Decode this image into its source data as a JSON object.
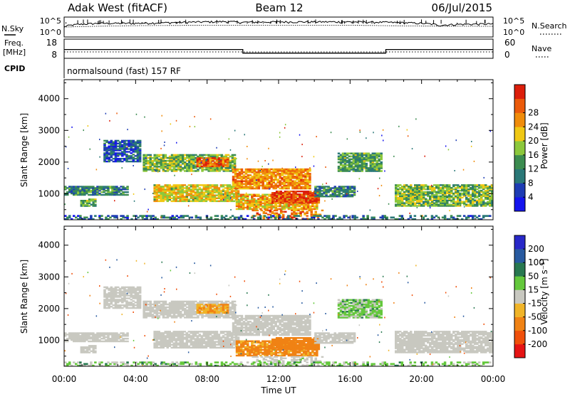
{
  "header": {
    "station": "Adak West (fitACF)",
    "beam": "Beam 12",
    "date": "06/Jul/2015"
  },
  "noise_panel": {
    "left_label": "N.Sky",
    "left_ticks": [
      "10^5",
      "10^0"
    ],
    "right_label": "N.Search",
    "right_ticks": [
      "10^5",
      "10^0"
    ]
  },
  "freq_panel": {
    "left_label_1": "Freq.",
    "left_label_2": "[MHz]",
    "left_ticks": [
      "18",
      "8"
    ],
    "right_label": "Nave",
    "right_ticks": [
      "60",
      "0"
    ],
    "cpid_label": "CPID",
    "cpid_text": "normalsound (fast) 157 RF"
  },
  "power_panel": {
    "ylabel": "Slant Range [km]",
    "yticks": [
      "1000",
      "2000",
      "3000",
      "4000"
    ],
    "colorbar_label": "Power [dB]",
    "colorbar_ticks": [
      "4",
      "8",
      "12",
      "16",
      "20",
      "24",
      "28"
    ]
  },
  "velocity_panel": {
    "ylabel": "Slant Range [km]",
    "yticks": [
      "1000",
      "2000",
      "3000",
      "4000"
    ],
    "colorbar_label": "Velocity [m s⁻¹]",
    "colorbar_ticks": [
      "200",
      "100",
      "50",
      "15",
      "-15",
      "-50",
      "-100",
      "-200"
    ]
  },
  "xaxis": {
    "label": "Time UT",
    "ticks": [
      "00:00",
      "04:00",
      "08:00",
      "12:00",
      "16:00",
      "20:00",
      "00:00"
    ]
  },
  "colors": {
    "power_scale": [
      "#1414ee",
      "#1e3cb4",
      "#2a7878",
      "#3c8c50",
      "#8cc83c",
      "#f0c814",
      "#f08c0a",
      "#eb5a0a",
      "#dc1e0a"
    ],
    "velocity_scale": [
      "#2828c8",
      "#285aa0",
      "#287850",
      "#64c83c",
      "#c8c8c0",
      "#f0b428",
      "#f08214",
      "#f0500a",
      "#e61414"
    ]
  },
  "chart_data": [
    {
      "type": "line",
      "title": "Noise (N.Sky / N.Search)",
      "x_range_hours": [
        0,
        24
      ],
      "y_scale": "log",
      "y_range": [
        1,
        100000
      ],
      "series": [
        {
          "name": "N.Sky",
          "x": [
            0,
            2,
            4,
            6,
            8,
            9,
            10,
            12,
            14,
            16,
            18,
            20,
            21,
            22,
            24
          ],
          "values": [
            300,
            3000,
            3000,
            5000,
            8000,
            10000,
            6000,
            8000,
            8000,
            8000,
            6000,
            3000,
            800,
            1500,
            2000
          ]
        },
        {
          "name": "N.Search",
          "x": [
            0,
            4,
            8,
            12,
            16,
            20,
            24
          ],
          "values": [
            300,
            800,
            1000,
            1000,
            1000,
            600,
            500
          ]
        }
      ]
    },
    {
      "type": "line",
      "title": "Frequency / Nave",
      "x_range_hours": [
        0,
        24
      ],
      "series": [
        {
          "name": "Freq. [MHz]",
          "x": [
            0,
            10,
            10,
            18,
            18,
            24
          ],
          "values": [
            12.6,
            12.6,
            10.7,
            10.7,
            12.6,
            12.6
          ]
        },
        {
          "name": "Nave",
          "x": [
            0,
            24
          ],
          "values": [
            20,
            20
          ]
        }
      ],
      "ylim_left": [
        8,
        18
      ],
      "ylim_right": [
        0,
        60
      ]
    },
    {
      "type": "heatmap",
      "title": "Power [dB]",
      "x_range_hours": [
        0,
        24
      ],
      "ylim": [
        180,
        4600
      ],
      "zlim": [
        0,
        30
      ],
      "regions": [
        {
          "t": [
            0,
            3.6
          ],
          "range_km": [
            950,
            1250
          ],
          "value": 10
        },
        {
          "t": [
            0.9,
            1.8
          ],
          "range_km": [
            600,
            850
          ],
          "value": 12
        },
        {
          "t": [
            2.2,
            4.3
          ],
          "range_km": [
            2000,
            2700
          ],
          "value": 6
        },
        {
          "t": [
            4.4,
            9.6
          ],
          "range_km": [
            1700,
            2250
          ],
          "value": 14
        },
        {
          "t": [
            5.0,
            9.8
          ],
          "range_km": [
            750,
            1300
          ],
          "value": 18
        },
        {
          "t": [
            7.4,
            9.2
          ],
          "range_km": [
            1850,
            2150
          ],
          "value": 24
        },
        {
          "t": [
            9.4,
            13.8
          ],
          "range_km": [
            1150,
            1800
          ],
          "value": 22
        },
        {
          "t": [
            9.6,
            14.2
          ],
          "range_km": [
            500,
            1000
          ],
          "value": 20
        },
        {
          "t": [
            11.6,
            14.3
          ],
          "range_km": [
            700,
            1100
          ],
          "value": 27
        },
        {
          "t": [
            10.5,
            14.5
          ],
          "range_km": [
            200,
            500
          ],
          "value": 24
        },
        {
          "t": [
            14.0,
            16.3
          ],
          "range_km": [
            900,
            1250
          ],
          "value": 10
        },
        {
          "t": [
            15.3,
            17.8
          ],
          "range_km": [
            1700,
            2300
          ],
          "value": 12
        },
        {
          "t": [
            18.5,
            24.0
          ],
          "range_km": [
            600,
            1300
          ],
          "value": 14
        },
        {
          "t": [
            0,
            24
          ],
          "range_km": [
            180,
            330
          ],
          "value": 8
        }
      ]
    },
    {
      "type": "heatmap",
      "title": "Velocity [m s^-1]",
      "x_range_hours": [
        0,
        24
      ],
      "ylim": [
        180,
        4600
      ],
      "zlim": [
        -200,
        200
      ],
      "regions": [
        {
          "t": [
            0,
            3.6
          ],
          "range_km": [
            950,
            1250
          ],
          "value": 0
        },
        {
          "t": [
            0.9,
            1.8
          ],
          "range_km": [
            600,
            850
          ],
          "value": 0
        },
        {
          "t": [
            2.2,
            4.3
          ],
          "range_km": [
            2000,
            2700
          ],
          "value": 0
        },
        {
          "t": [
            4.4,
            9.6
          ],
          "range_km": [
            1700,
            2250
          ],
          "value": 0
        },
        {
          "t": [
            5.0,
            9.8
          ],
          "range_km": [
            750,
            1300
          ],
          "value": 0
        },
        {
          "t": [
            7.4,
            9.2
          ],
          "range_km": [
            1850,
            2150
          ],
          "value": -30
        },
        {
          "t": [
            9.4,
            13.8
          ],
          "range_km": [
            1150,
            1800
          ],
          "value": 0
        },
        {
          "t": [
            9.6,
            14.2
          ],
          "range_km": [
            500,
            1000
          ],
          "value": -40
        },
        {
          "t": [
            11.6,
            14.3
          ],
          "range_km": [
            700,
            1100
          ],
          "value": -60
        },
        {
          "t": [
            10.5,
            14.5
          ],
          "range_km": [
            200,
            500
          ],
          "value": 5
        },
        {
          "t": [
            14.0,
            16.3
          ],
          "range_km": [
            900,
            1250
          ],
          "value": 0
        },
        {
          "t": [
            15.3,
            17.8
          ],
          "range_km": [
            1700,
            2300
          ],
          "value": 20
        },
        {
          "t": [
            18.5,
            24.0
          ],
          "range_km": [
            600,
            1300
          ],
          "value": 0
        },
        {
          "t": [
            0,
            24
          ],
          "range_km": [
            180,
            330
          ],
          "value": 20
        }
      ]
    }
  ]
}
